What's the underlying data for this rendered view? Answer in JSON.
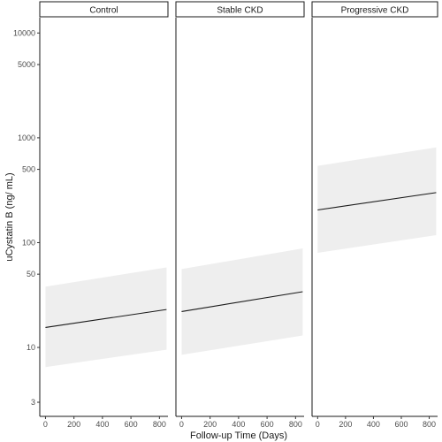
{
  "chart_data": {
    "type": "line",
    "xlabel": "Follow-up Time (Days)",
    "ylabel": "uCystatin B (ng/ mL)",
    "y_scale": "log",
    "ylim": [
      2.2,
      14000
    ],
    "xlim": [
      -40,
      860
    ],
    "grid": false,
    "y_ticks": [
      3,
      10,
      50,
      100,
      500,
      1000,
      5000,
      10000
    ],
    "y_tick_labels": [
      "3",
      "10",
      "50",
      "100",
      "500",
      "1000",
      "5000",
      "10000"
    ],
    "x_ticks": [
      0,
      200,
      400,
      600,
      800
    ],
    "x_tick_labels": [
      "0",
      "200",
      "400",
      "600",
      "800"
    ],
    "panels": [
      {
        "label": "Control",
        "x": [
          0,
          850
        ],
        "y": [
          15.5,
          23
        ],
        "lower": [
          6.5,
          9.5
        ],
        "upper": [
          38,
          58
        ]
      },
      {
        "label": "Stable CKD",
        "x": [
          0,
          850
        ],
        "y": [
          22,
          34
        ],
        "lower": [
          8.5,
          13
        ],
        "upper": [
          56,
          88
        ]
      },
      {
        "label": "Progressive CKD",
        "x": [
          0,
          850
        ],
        "y": [
          205,
          300
        ],
        "lower": [
          80,
          118
        ],
        "upper": [
          540,
          810
        ]
      }
    ]
  }
}
